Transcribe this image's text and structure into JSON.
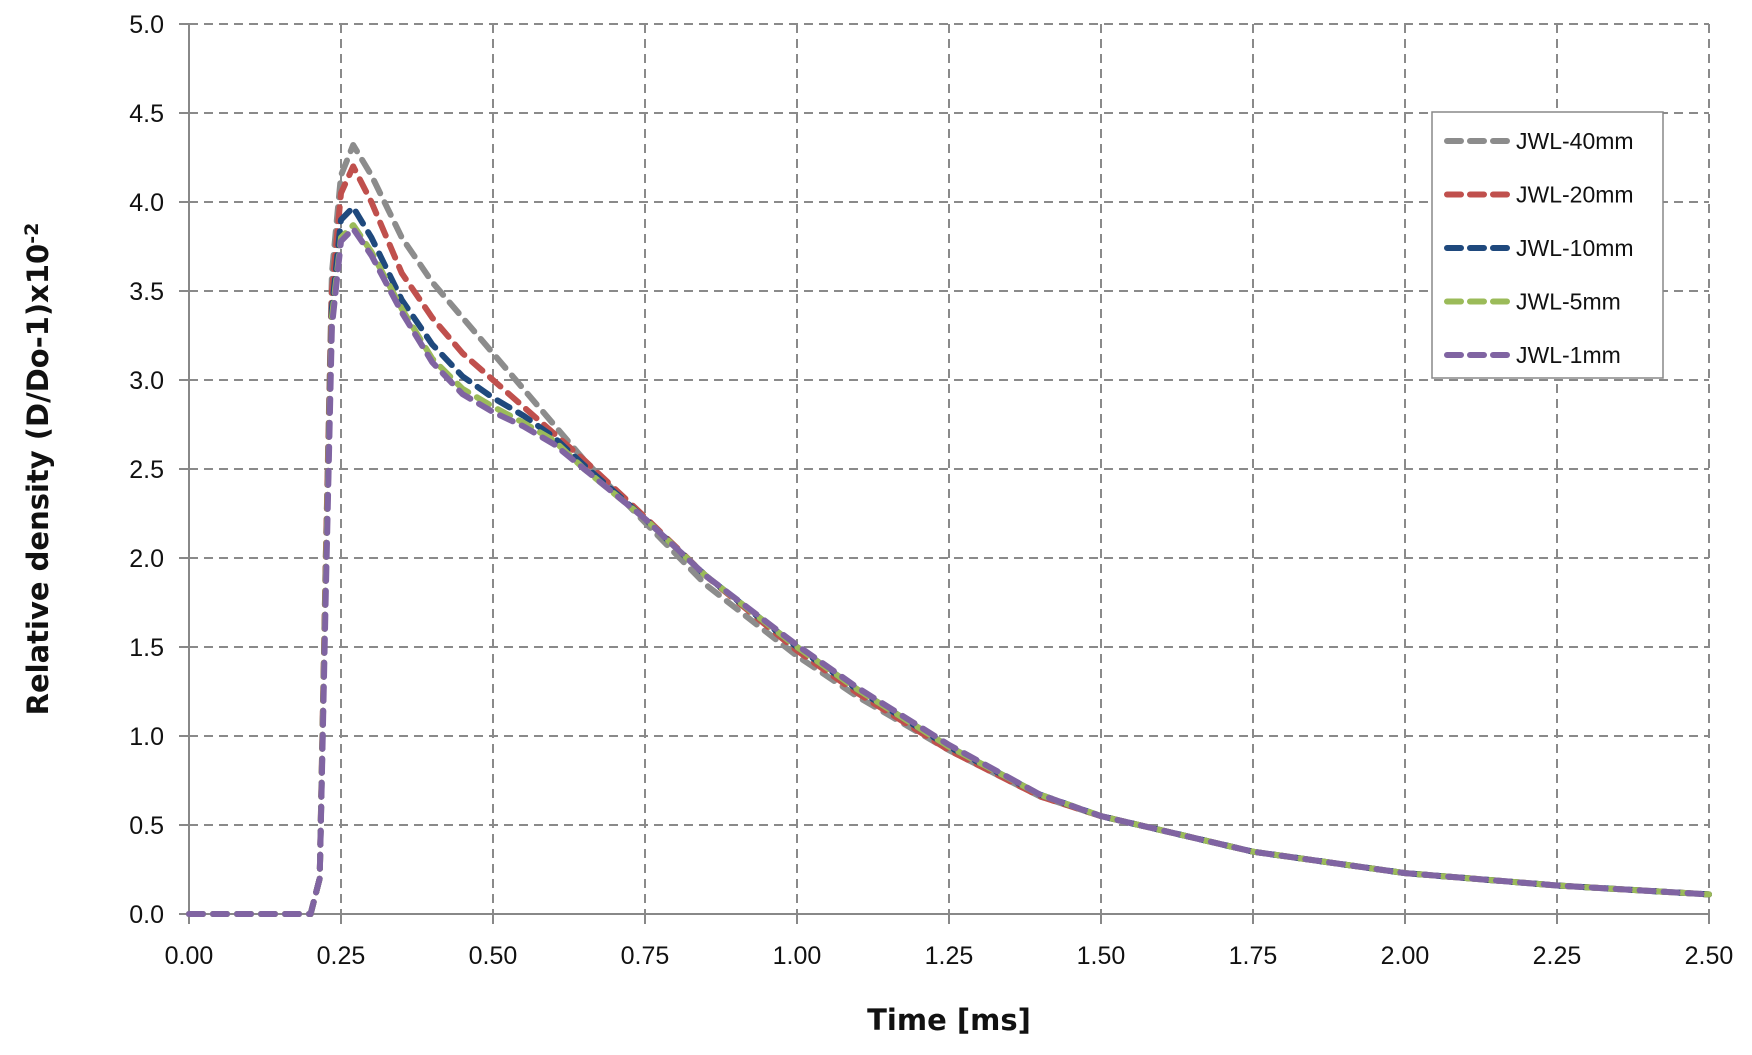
{
  "chart_data": {
    "type": "line",
    "title": "",
    "xlabel": "Time [ms]",
    "ylabel": "Relative density (D/Do-1)x10",
    "ylabel_superscript": "-2",
    "xlim": [
      0,
      2.5
    ],
    "ylim": [
      0,
      5.0
    ],
    "xticks": [
      "0.00",
      "0.25",
      "0.50",
      "0.75",
      "1.00",
      "1.25",
      "1.50",
      "1.75",
      "2.00",
      "2.25",
      "2.50"
    ],
    "yticks": [
      "0.0",
      "0.5",
      "1.0",
      "1.5",
      "2.0",
      "2.5",
      "3.0",
      "3.5",
      "4.0",
      "4.5",
      "5.0"
    ],
    "grid": true,
    "line_style": "dashed",
    "legend_position": "top-right",
    "x": [
      0,
      0.2,
      0.215,
      0.225,
      0.235,
      0.25,
      0.27,
      0.3,
      0.35,
      0.4,
      0.45,
      0.5,
      0.55,
      0.6,
      0.65,
      0.75,
      0.85,
      1.0,
      1.1,
      1.25,
      1.4,
      1.5,
      1.75,
      2.0,
      2.25,
      2.5
    ],
    "series": [
      {
        "name": "JWL-40mm",
        "color": "#8c8c8c",
        "values": [
          0,
          0,
          0.2,
          2.0,
          3.6,
          4.15,
          4.32,
          4.15,
          3.8,
          3.55,
          3.35,
          3.15,
          2.95,
          2.75,
          2.55,
          2.2,
          1.85,
          1.45,
          1.22,
          0.92,
          0.66,
          0.55,
          0.35,
          0.23,
          0.16,
          0.11
        ]
      },
      {
        "name": "JWL-20mm",
        "color": "#c0504d",
        "values": [
          0,
          0,
          0.2,
          2.0,
          3.5,
          4.05,
          4.2,
          4.0,
          3.6,
          3.35,
          3.15,
          3.0,
          2.85,
          2.7,
          2.55,
          2.23,
          1.9,
          1.48,
          1.24,
          0.92,
          0.66,
          0.55,
          0.35,
          0.23,
          0.16,
          0.11
        ]
      },
      {
        "name": "JWL-10mm",
        "color": "#1f497d",
        "values": [
          0,
          0,
          0.2,
          1.9,
          3.4,
          3.9,
          3.97,
          3.8,
          3.45,
          3.2,
          3.02,
          2.9,
          2.8,
          2.68,
          2.52,
          2.22,
          1.9,
          1.5,
          1.26,
          0.94,
          0.67,
          0.55,
          0.35,
          0.23,
          0.16,
          0.11
        ]
      },
      {
        "name": "JWL-5mm",
        "color": "#9bbb59",
        "values": [
          0,
          0,
          0.2,
          1.9,
          3.35,
          3.8,
          3.87,
          3.72,
          3.4,
          3.12,
          2.95,
          2.85,
          2.76,
          2.66,
          2.5,
          2.22,
          1.9,
          1.5,
          1.26,
          0.94,
          0.67,
          0.55,
          0.35,
          0.23,
          0.16,
          0.11
        ]
      },
      {
        "name": "JWL-1mm",
        "color": "#8064a2",
        "values": [
          0,
          0,
          0.2,
          1.8,
          3.3,
          3.78,
          3.85,
          3.7,
          3.38,
          3.1,
          2.92,
          2.82,
          2.74,
          2.64,
          2.5,
          2.22,
          1.9,
          1.51,
          1.27,
          0.95,
          0.67,
          0.55,
          0.35,
          0.23,
          0.16,
          0.11
        ]
      }
    ]
  }
}
